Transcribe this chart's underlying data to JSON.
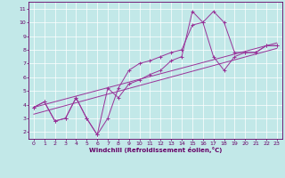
{
  "xlabel": "Windchill (Refroidissement éolien,°C)",
  "ylabel": "",
  "xlim": [
    -0.5,
    23.5
  ],
  "ylim": [
    1.5,
    11.5
  ],
  "xticks": [
    0,
    1,
    2,
    3,
    4,
    5,
    6,
    7,
    8,
    9,
    10,
    11,
    12,
    13,
    14,
    15,
    16,
    17,
    18,
    19,
    20,
    21,
    22,
    23
  ],
  "yticks": [
    2,
    3,
    4,
    5,
    6,
    7,
    8,
    9,
    10,
    11
  ],
  "bg_color": "#c2e8e8",
  "line_color": "#993399",
  "grid_color": "#ffffff",
  "line1_x": [
    0,
    1,
    2,
    3,
    4,
    5,
    6,
    7,
    8,
    9,
    10,
    11,
    12,
    13,
    14,
    15,
    16,
    17,
    18,
    19,
    20,
    21,
    22,
    23
  ],
  "line1_y": [
    3.8,
    4.2,
    2.8,
    3.0,
    4.5,
    3.0,
    1.8,
    3.0,
    5.2,
    6.5,
    7.0,
    7.2,
    7.5,
    7.8,
    8.0,
    9.8,
    10.0,
    10.8,
    10.0,
    7.8,
    7.8,
    7.8,
    8.3,
    8.3
  ],
  "line2_x": [
    0,
    1,
    2,
    3,
    4,
    5,
    6,
    7,
    8,
    9,
    10,
    11,
    12,
    13,
    14,
    15,
    16,
    17,
    18,
    19,
    20,
    21,
    22,
    23
  ],
  "line2_y": [
    3.8,
    4.2,
    2.8,
    3.0,
    4.5,
    3.0,
    1.8,
    5.2,
    4.5,
    5.5,
    5.8,
    6.2,
    6.5,
    7.2,
    7.5,
    10.8,
    10.0,
    7.5,
    6.5,
    7.5,
    7.8,
    7.8,
    8.3,
    8.3
  ],
  "line3_x": [
    0,
    23
  ],
  "line3_y": [
    3.8,
    8.5
  ],
  "line4_x": [
    0,
    23
  ],
  "line4_y": [
    3.3,
    8.1
  ]
}
